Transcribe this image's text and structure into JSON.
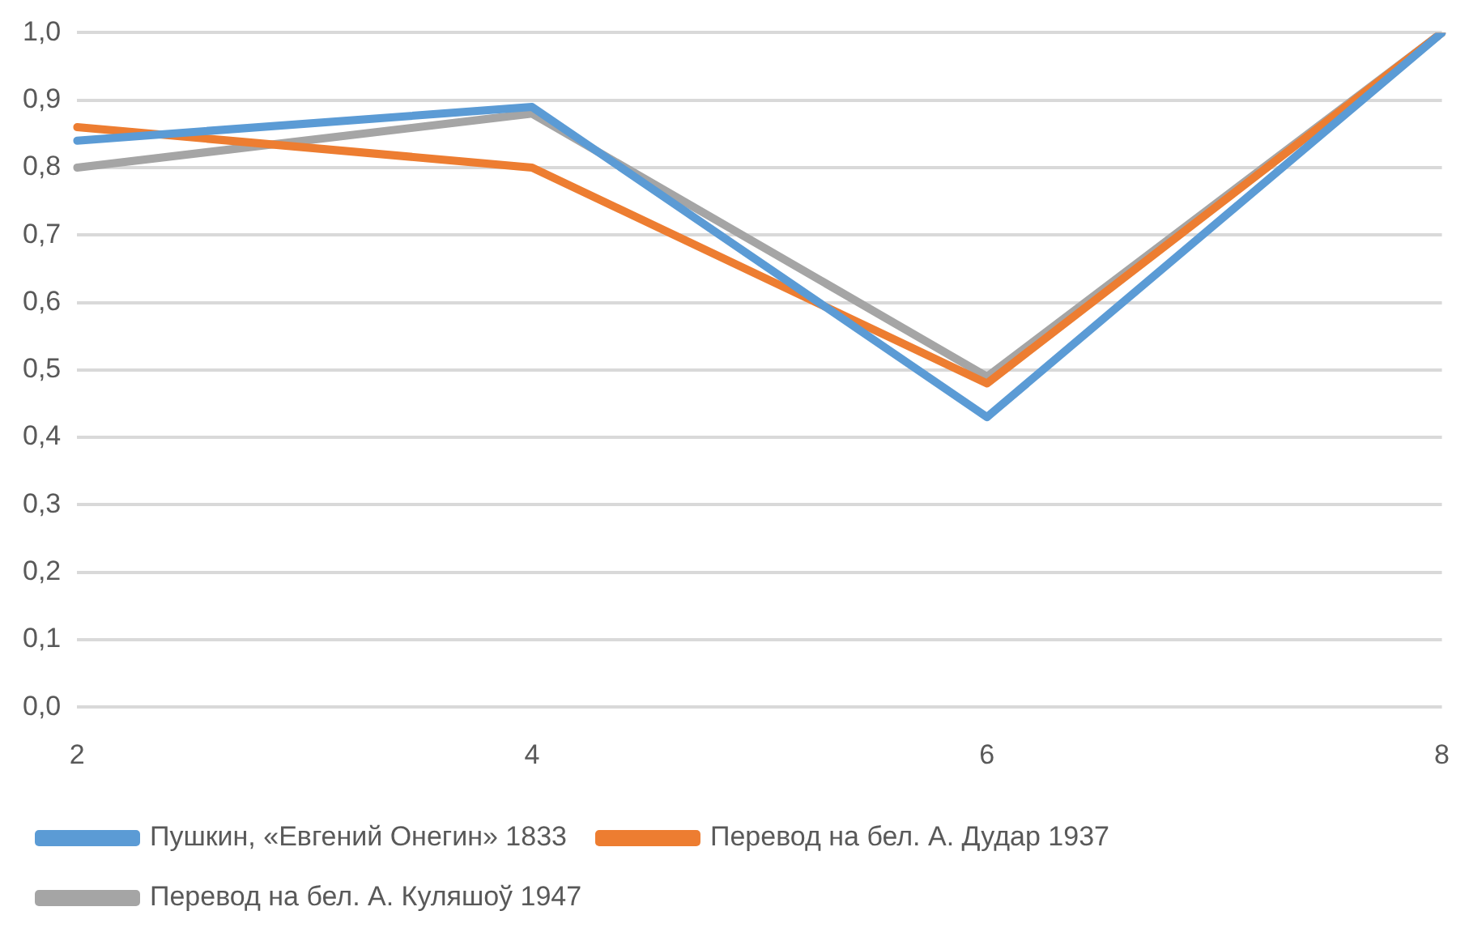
{
  "chart_data": {
    "type": "line",
    "categories": [
      "2",
      "4",
      "6",
      "8"
    ],
    "series": [
      {
        "name": "Пушкин, «Евгений Онегин» 1833",
        "color": "#5b9bd5",
        "values": [
          0.84,
          0.89,
          0.43,
          1.0
        ]
      },
      {
        "name": "Перевод на бел. А. Дудар 1937",
        "color": "#ed7d31",
        "values": [
          0.86,
          0.8,
          0.48,
          1.0
        ]
      },
      {
        "name": "Перевод на бел. А. Куляшоў 1947",
        "color": "#a5a5a5",
        "values": [
          0.8,
          0.88,
          0.49,
          1.0
        ]
      }
    ],
    "ylim": [
      0,
      1
    ],
    "yticks": [
      {
        "value": 0,
        "label": "0,0"
      },
      {
        "value": 0.1,
        "label": "0,1"
      },
      {
        "value": 0.2,
        "label": "0,2"
      },
      {
        "value": 0.3,
        "label": "0,3"
      },
      {
        "value": 0.4,
        "label": "0,4"
      },
      {
        "value": 0.5,
        "label": "0,5"
      },
      {
        "value": 0.6,
        "label": "0,6"
      },
      {
        "value": 0.7,
        "label": "0,7"
      },
      {
        "value": 0.8,
        "label": "0,8"
      },
      {
        "value": 0.9,
        "label": "0,9"
      },
      {
        "value": 1,
        "label": "1,0"
      }
    ],
    "grid": "y",
    "legend": "bottom",
    "marker": "none",
    "line_style": "solid"
  }
}
